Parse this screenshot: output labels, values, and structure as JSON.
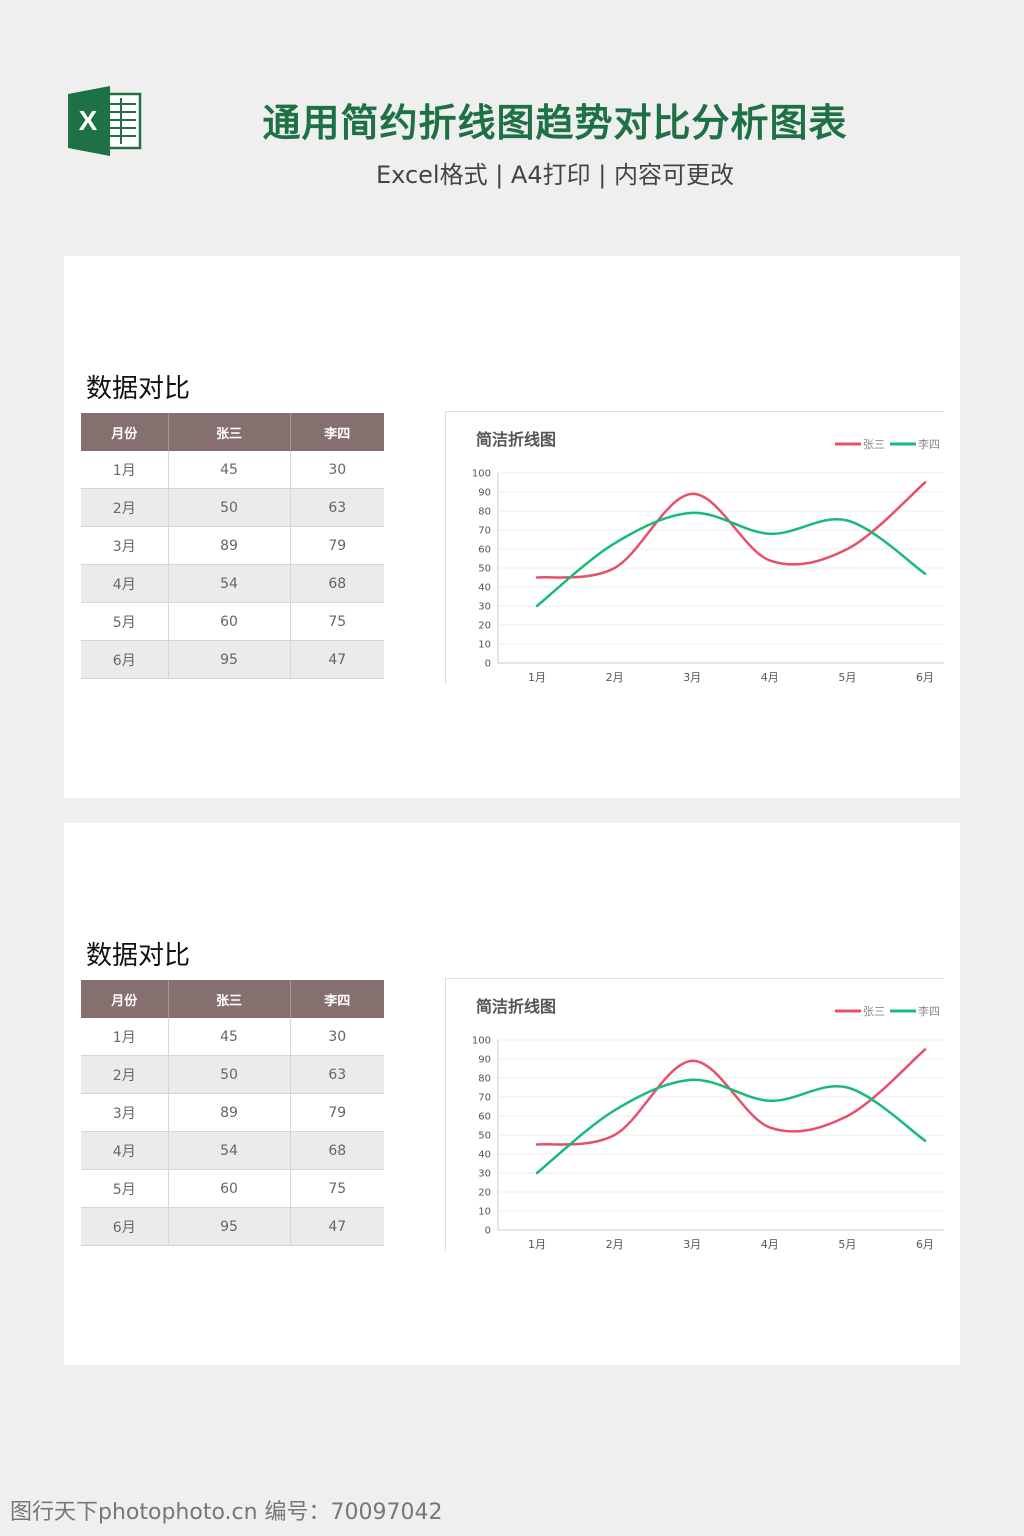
{
  "header": {
    "title": "通用简约折线图趋势对比分析图表",
    "subtitle": "Excel格式 | A4打印 | 内容可更改",
    "logo_letter": "X",
    "logo_color": "#1e7145"
  },
  "sections": [
    {
      "heading": "数据对比",
      "table": {
        "headers": [
          "月份",
          "张三",
          "李四"
        ],
        "rows": [
          [
            "1月",
            "45",
            "30"
          ],
          [
            "2月",
            "50",
            "63"
          ],
          [
            "3月",
            "89",
            "79"
          ],
          [
            "4月",
            "54",
            "68"
          ],
          [
            "5月",
            "60",
            "75"
          ],
          [
            "6月",
            "95",
            "47"
          ]
        ]
      }
    },
    {
      "heading": "数据对比",
      "table": {
        "headers": [
          "月份",
          "张三",
          "李四"
        ],
        "rows": [
          [
            "1月",
            "45",
            "30"
          ],
          [
            "2月",
            "50",
            "63"
          ],
          [
            "3月",
            "89",
            "79"
          ],
          [
            "4月",
            "54",
            "68"
          ],
          [
            "5月",
            "60",
            "75"
          ],
          [
            "6月",
            "95",
            "47"
          ]
        ]
      }
    }
  ],
  "chart_data": [
    {
      "type": "line",
      "title": "简洁折线图",
      "categories": [
        "1月",
        "2月",
        "3月",
        "4月",
        "5月",
        "6月"
      ],
      "series": [
        {
          "name": "张三",
          "values": [
            45,
            50,
            89,
            54,
            60,
            95
          ],
          "color": "#e8506a"
        },
        {
          "name": "李四",
          "values": [
            30,
            63,
            79,
            68,
            75,
            47
          ],
          "color": "#19b97a"
        }
      ],
      "ylim": [
        0,
        100
      ],
      "yticks": [
        "0",
        "10",
        "20",
        "30",
        "40",
        "50",
        "60",
        "70",
        "80",
        "90",
        "100"
      ],
      "legend": "top-right",
      "grid": true,
      "smooth": true
    },
    {
      "type": "line",
      "title": "简洁折线图",
      "categories": [
        "1月",
        "2月",
        "3月",
        "4月",
        "5月",
        "6月"
      ],
      "series": [
        {
          "name": "张三",
          "values": [
            45,
            50,
            89,
            54,
            60,
            95
          ],
          "color": "#e8506a"
        },
        {
          "name": "李四",
          "values": [
            30,
            63,
            79,
            68,
            75,
            47
          ],
          "color": "#19b97a"
        }
      ],
      "ylim": [
        0,
        100
      ],
      "yticks": [
        "0",
        "10",
        "20",
        "30",
        "40",
        "50",
        "60",
        "70",
        "80",
        "90",
        "100"
      ],
      "legend": "top-right",
      "grid": true,
      "smooth": true
    }
  ],
  "watermark": "图行天下photophoto.cn 编号：70097042"
}
